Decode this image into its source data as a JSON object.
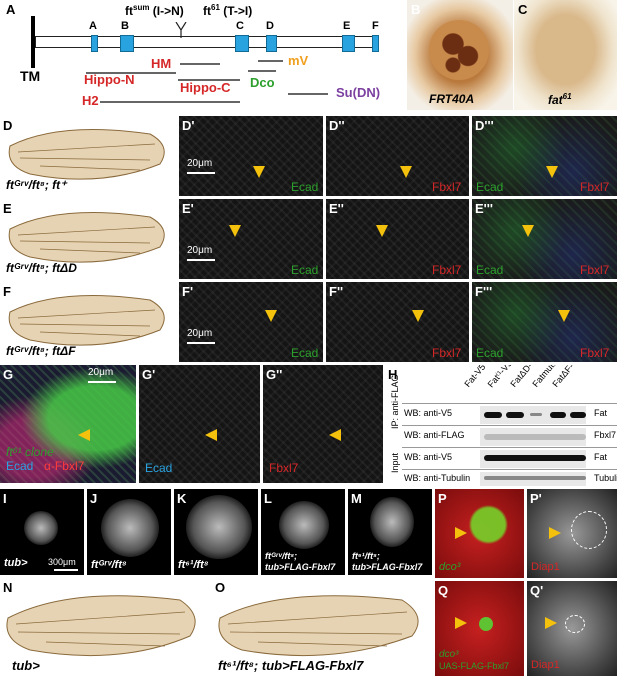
{
  "panels": {
    "A": {
      "label": "A",
      "domain_labels": [
        "A",
        "B",
        "C",
        "D",
        "E",
        "F"
      ],
      "mutation_sum": "ft",
      "mutation_sum_sup": "sum",
      "mutation_sum_change": "(I->N)",
      "mutation_61": "ft",
      "mutation_61_sup": "61",
      "mutation_61_change": "(T->I)",
      "tm_label": "TM",
      "fragments": {
        "hippo_n": "Hippo-N",
        "hm": "HM",
        "hippo_c": "Hippo-C",
        "h2": "H2",
        "dco": "Dco",
        "mv": "mV",
        "su_dn": "Su(DN)"
      },
      "colors": {
        "red": "#d62728",
        "green": "#2ca02c",
        "orange": "#f0a020",
        "purple": "#7b3fa0",
        "domain_blue": "#29a3e0"
      }
    },
    "B": {
      "label": "B",
      "caption": "FRT40A"
    },
    "C": {
      "label": "C",
      "caption_base": "fat",
      "caption_sup": "61"
    },
    "D": {
      "label": "D",
      "genotype": "ftᴳʳᵛ/ft⁸; ft⁺",
      "sub": [
        {
          "label": "D'",
          "stain": "Ecad",
          "scale": "20μm"
        },
        {
          "label": "D''",
          "stain": "Fbxl7"
        },
        {
          "label": "D'''",
          "stain_a": "Ecad",
          "stain_b": "Fbxl7"
        }
      ]
    },
    "E": {
      "label": "E",
      "genotype": "ftᴳʳᵛ/ft⁸; ftΔD",
      "sub": [
        {
          "label": "E'",
          "stain": "Ecad",
          "scale": "20μm"
        },
        {
          "label": "E''",
          "stain": "Fbxl7"
        },
        {
          "label": "E'''",
          "stain_a": "Ecad",
          "stain_b": "Fbxl7"
        }
      ]
    },
    "F": {
      "label": "F",
      "genotype": "ftᴳʳᵛ/ft⁸; ftΔF",
      "sub": [
        {
          "label": "F'",
          "stain": "Ecad",
          "scale": "20μm"
        },
        {
          "label": "F''",
          "stain": "Fbxl7"
        },
        {
          "label": "F'''",
          "stain_a": "Ecad",
          "stain_b": "Fbxl7"
        }
      ]
    },
    "G": {
      "label": "G",
      "scale": "20μm",
      "clone": "ft⁶¹ clone",
      "ecad": "Ecad",
      "fbxl7": "α-Fbxl7",
      "sub": [
        {
          "label": "G'",
          "stain": "Ecad"
        },
        {
          "label": "G''",
          "stain": "Fbxl7"
        }
      ]
    },
    "H": {
      "label": "H",
      "lanes": [
        "Fat-V5",
        "Fat⁽¹-V5",
        "FatΔD-V5",
        "FatmutF-V5",
        "FatΔF-V5"
      ],
      "ip": "IP: anti-FLAG",
      "input": "Input",
      "rows": [
        {
          "wb": "WB: anti-V5",
          "target": "Fat"
        },
        {
          "wb": "WB: anti-FLAG",
          "target": "Fbxl7"
        },
        {
          "wb": "WB: anti-V5",
          "target": "Fat"
        },
        {
          "wb": "WB: anti-Tubulin",
          "target": "Tubulin"
        }
      ]
    },
    "I": {
      "label": "I",
      "caption": "tub>",
      "scale": "300μm"
    },
    "J": {
      "label": "J",
      "caption": "ftᴳʳᵛ/ft⁸"
    },
    "K": {
      "label": "K",
      "caption": "ft⁶¹/ft⁸"
    },
    "L": {
      "label": "L",
      "caption_1": "ftᴳʳᵛ/ft⁸;",
      "caption_2": "tub>FLAG-Fbxl7"
    },
    "M": {
      "label": "M",
      "caption_1": "ft⁶¹/ft⁸;",
      "caption_2": "tub>FLAG-Fbxl7"
    },
    "N": {
      "label": "N",
      "caption": "tub>"
    },
    "O": {
      "label": "O",
      "caption": "ft⁶¹/ft⁸; tub>FLAG-Fbxl7"
    },
    "P": {
      "label": "P",
      "caption": "dco³"
    },
    "P2": {
      "label": "P'",
      "caption": "Diap1"
    },
    "Q": {
      "label": "Q",
      "caption_1": "dco³",
      "caption_2": "UAS-FLAG-Fbxl7"
    },
    "Q2": {
      "label": "Q'",
      "caption": "Diap1"
    }
  }
}
